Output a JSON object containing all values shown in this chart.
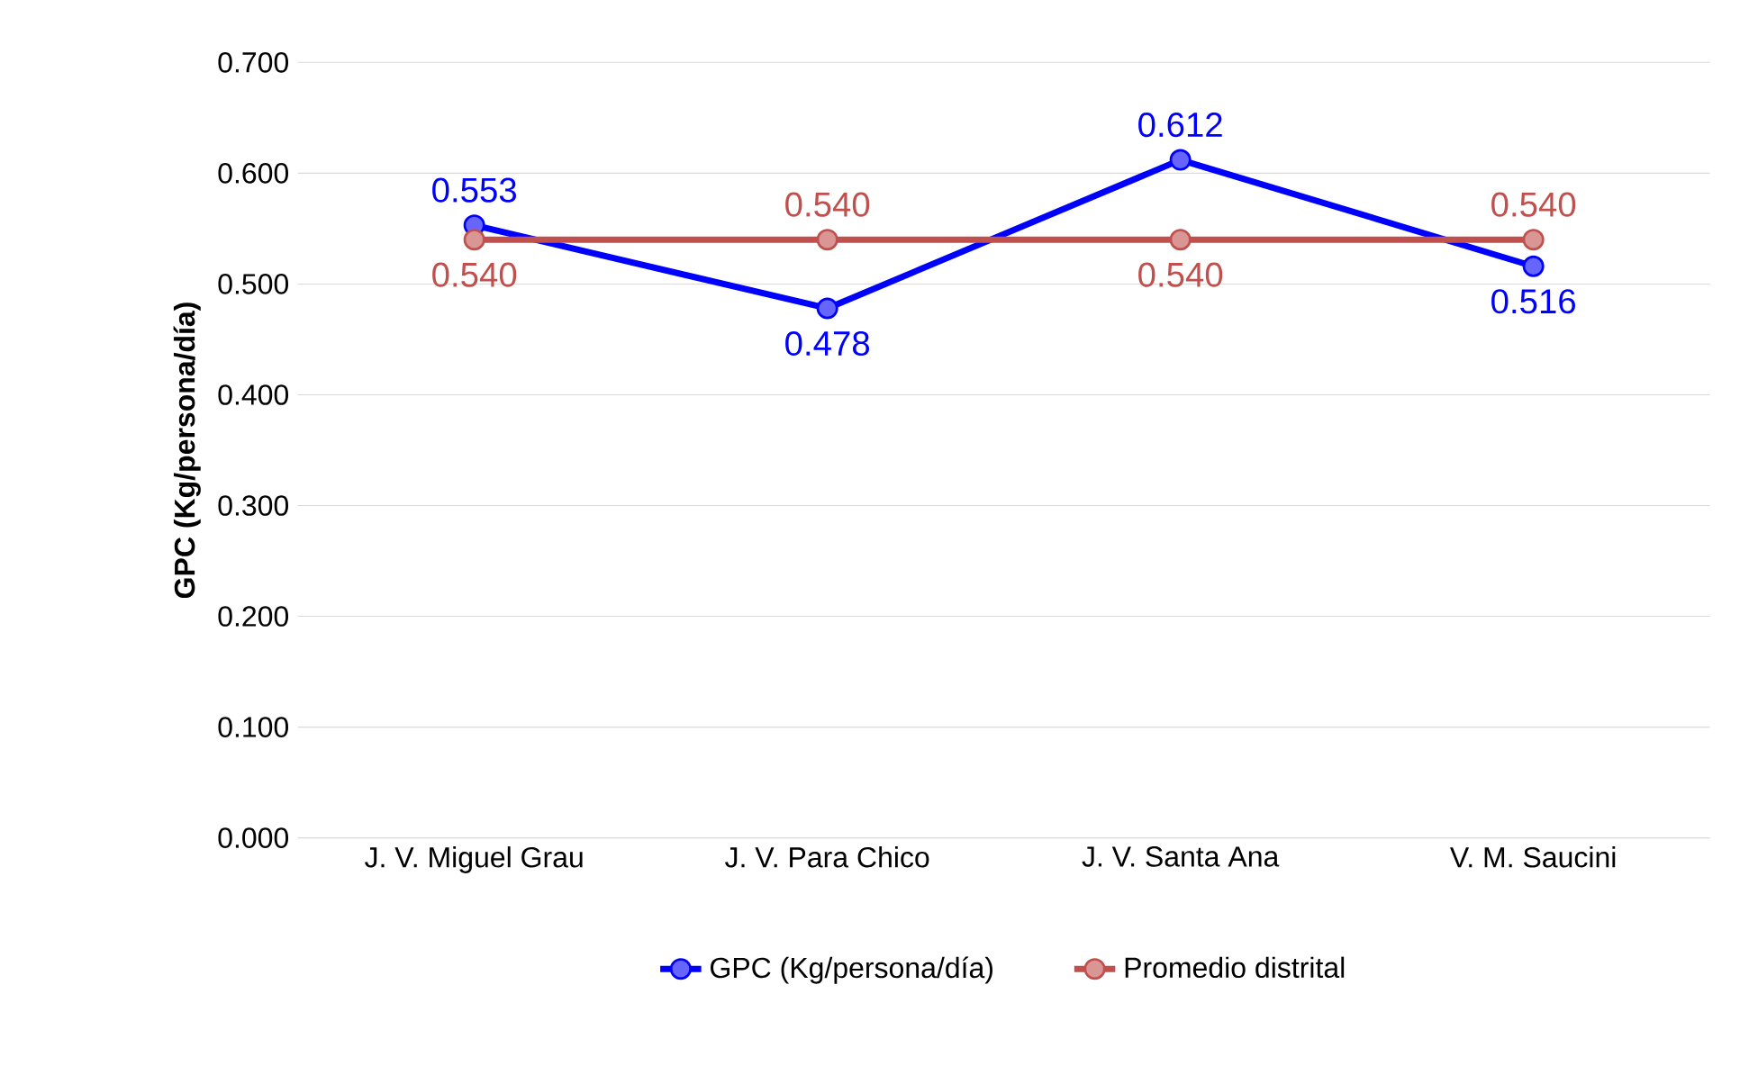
{
  "chart_data": {
    "type": "line",
    "ylabel": "GPC (Kg/persona/día)",
    "categories": [
      "J. V. Miguel Grau",
      "J. V. Para Chico",
      "J. V. Santa Ana",
      "V. M. Saucini"
    ],
    "series": [
      {
        "name": "GPC (Kg/persona/día)",
        "color": "#0000ff",
        "values": [
          0.553,
          0.478,
          0.612,
          0.516
        ],
        "value_labels": [
          "0.553",
          "0.478",
          "0.612",
          "0.516"
        ]
      },
      {
        "name": "Promedio distrital",
        "color": "#c0504d",
        "values": [
          0.54,
          0.54,
          0.54,
          0.54
        ],
        "value_labels": [
          "0.540",
          "0.540",
          "0.540",
          "0.540"
        ]
      }
    ],
    "ylim": [
      0,
      0.7
    ],
    "yticks": [
      {
        "value": 0,
        "label": "0.000"
      },
      {
        "value": 0.1,
        "label": "0.100"
      },
      {
        "value": 0.2,
        "label": "0.200"
      },
      {
        "value": 0.3,
        "label": "0.300"
      },
      {
        "value": 0.4,
        "label": "0.400"
      },
      {
        "value": 0.5,
        "label": "0.500"
      },
      {
        "value": 0.6,
        "label": "0.600"
      },
      {
        "value": 0.7,
        "label": "0.700"
      }
    ],
    "grid": "y",
    "legend": "bottom",
    "marker": "circle",
    "line_style": "solid"
  }
}
